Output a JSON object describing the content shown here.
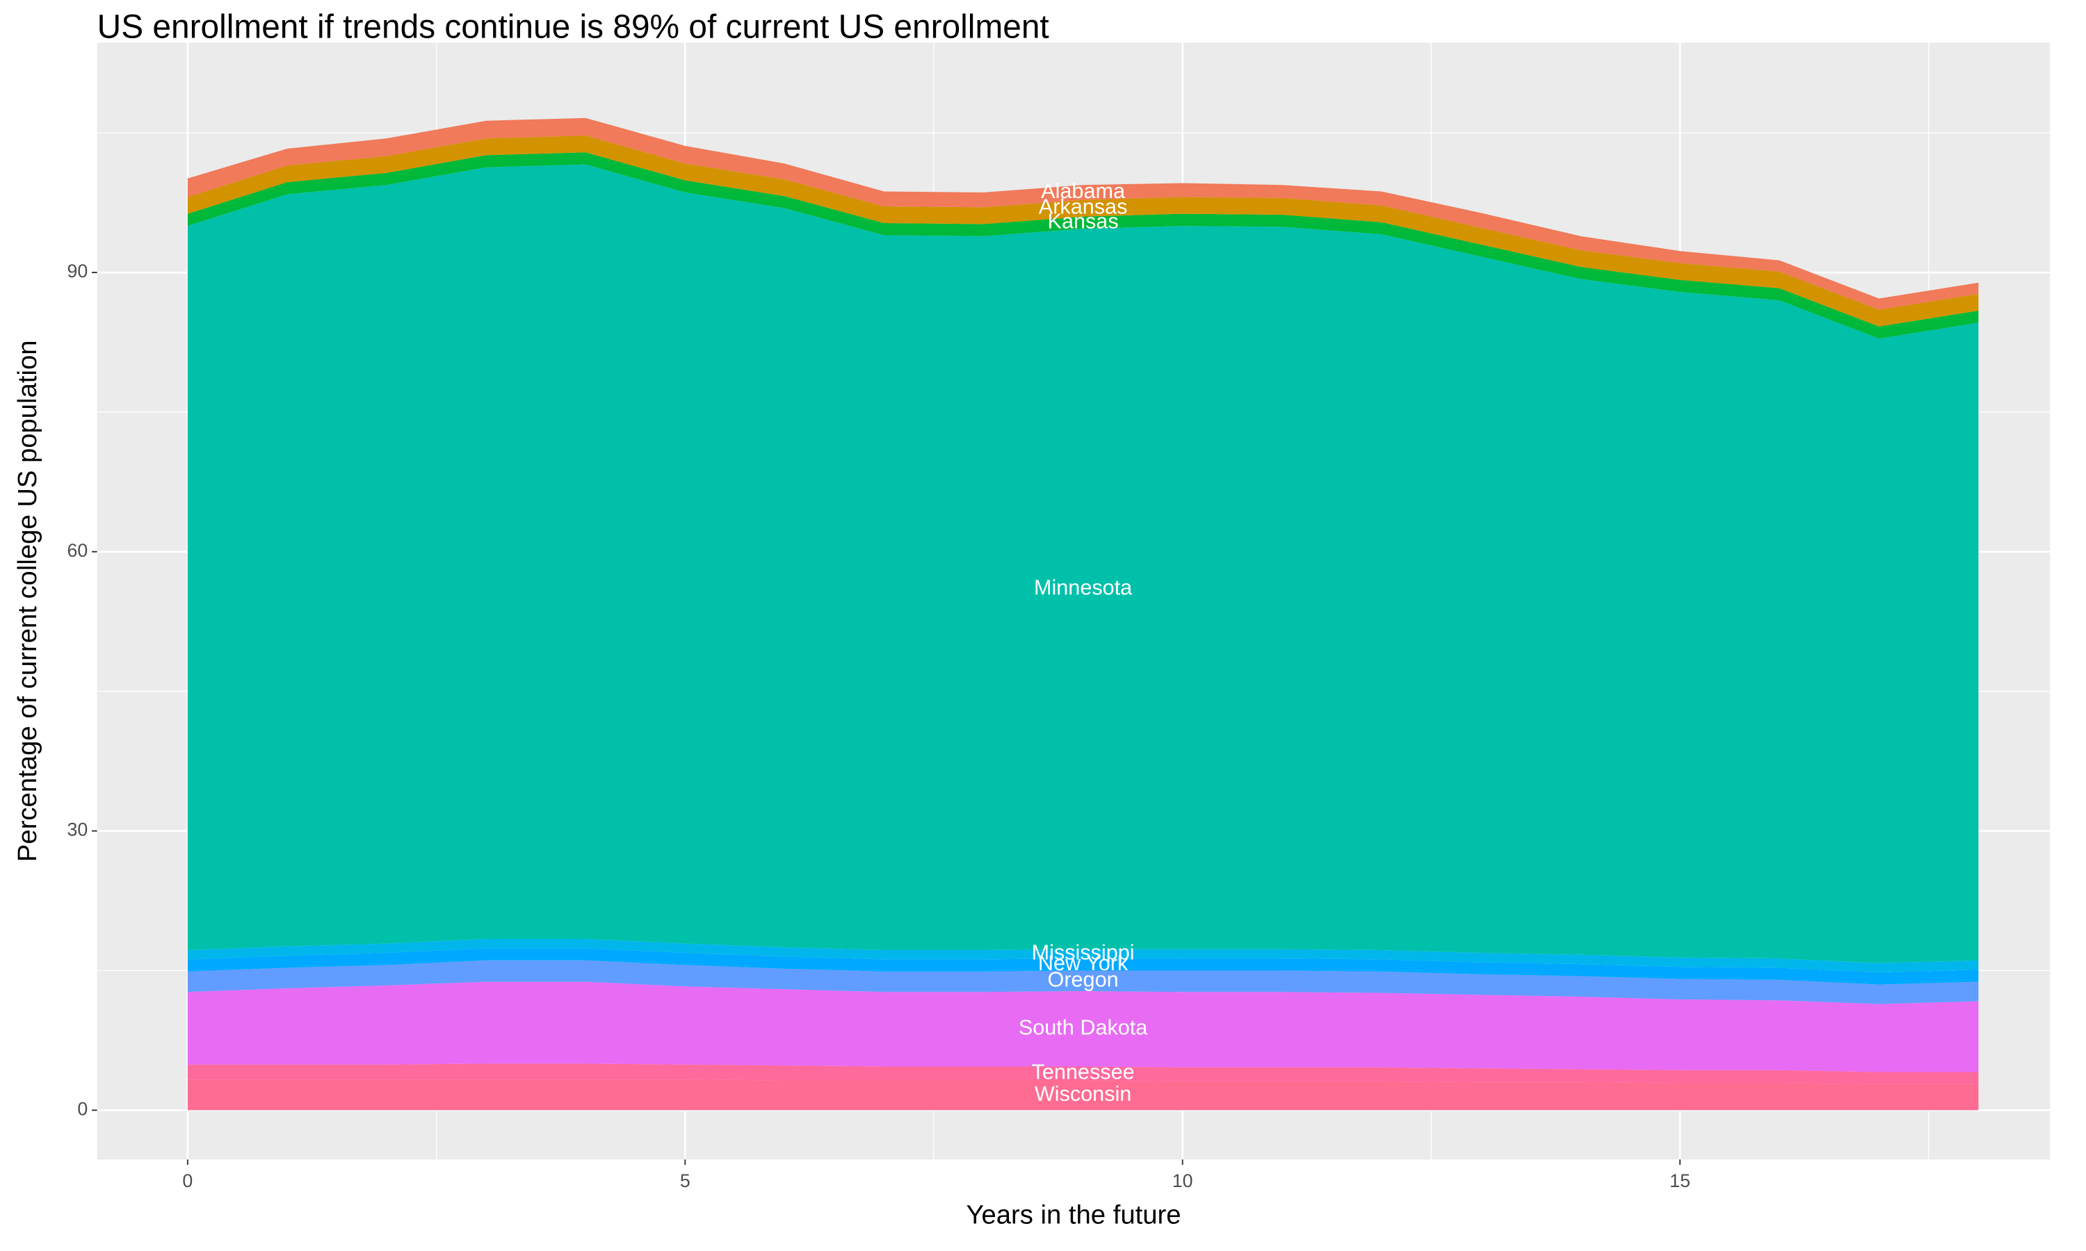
{
  "chart_data": {
    "type": "stacked_area",
    "title": "US enrollment if trends continue is 89% of current US enrollment",
    "x_label": "Years in the future",
    "y_label": "Percentage of current college US population",
    "x": [
      0,
      1,
      2,
      3,
      4,
      5,
      6,
      7,
      8,
      9,
      10,
      11,
      12,
      13,
      14,
      15,
      16,
      17,
      18
    ],
    "xlim": [
      -0.91,
      18.72
    ],
    "xticks": [
      0,
      5,
      10,
      15
    ],
    "ylim": [
      -5.3,
      114.7
    ],
    "yticks": [
      0,
      30,
      60,
      90
    ],
    "grid": true,
    "minor_grid": true,
    "label_x": 9,
    "series": [
      {
        "name": "Wisconsin",
        "color": "#FF6C91",
        "values": [
          3.3,
          3.3,
          3.3,
          3.3,
          3.3,
          3.3,
          3.2,
          3.2,
          3.2,
          3.2,
          3.1,
          3.1,
          3.1,
          3.0,
          3.0,
          2.9,
          2.9,
          2.8,
          2.8
        ]
      },
      {
        "name": "Tennessee",
        "color": "#FF6A9C",
        "values": [
          1.6,
          1.6,
          1.6,
          1.7,
          1.7,
          1.6,
          1.6,
          1.5,
          1.5,
          1.5,
          1.5,
          1.5,
          1.5,
          1.5,
          1.4,
          1.4,
          1.4,
          1.3,
          1.3
        ]
      },
      {
        "name": "South Dakota",
        "color": "#E76BF3",
        "values": [
          7.8,
          8.2,
          8.5,
          8.8,
          8.8,
          8.4,
          8.2,
          8.0,
          8.0,
          8.1,
          8.1,
          8.1,
          8.0,
          7.9,
          7.8,
          7.6,
          7.5,
          7.3,
          7.6
        ]
      },
      {
        "name": "Oregon",
        "color": "#619CFF",
        "values": [
          2.2,
          2.2,
          2.2,
          2.3,
          2.3,
          2.3,
          2.2,
          2.2,
          2.2,
          2.2,
          2.3,
          2.3,
          2.3,
          2.2,
          2.2,
          2.2,
          2.2,
          2.1,
          2.1
        ]
      },
      {
        "name": "New York",
        "color": "#00A9FF",
        "values": [
          1.3,
          1.3,
          1.3,
          1.3,
          1.3,
          1.3,
          1.3,
          1.3,
          1.3,
          1.3,
          1.3,
          1.3,
          1.3,
          1.3,
          1.3,
          1.3,
          1.3,
          1.3,
          1.3
        ]
      },
      {
        "name": "Mississippi",
        "color": "#00B6EB",
        "values": [
          1.0,
          1.0,
          1.0,
          1.0,
          1.0,
          1.0,
          1.0,
          1.0,
          1.0,
          1.0,
          1.0,
          1.0,
          1.0,
          1.0,
          1.0,
          1.0,
          1.0,
          1.0,
          1.0
        ]
      },
      {
        "name": "Minnesota",
        "color": "#00C0AA",
        "values": [
          77.8,
          80.8,
          81.5,
          82.9,
          83.2,
          80.7,
          79.4,
          76.8,
          76.7,
          77.4,
          77.7,
          77.6,
          76.9,
          74.8,
          72.6,
          71.5,
          70.7,
          67.1,
          68.5
        ]
      },
      {
        "name": "Kansas",
        "color": "#00B83A",
        "values": [
          1.3,
          1.3,
          1.3,
          1.3,
          1.3,
          1.3,
          1.3,
          1.3,
          1.3,
          1.3,
          1.3,
          1.3,
          1.3,
          1.3,
          1.3,
          1.3,
          1.3,
          1.3,
          1.3
        ]
      },
      {
        "name": "Arkansas",
        "color": "#D39200",
        "values": [
          1.8,
          1.8,
          1.8,
          1.8,
          1.8,
          1.8,
          1.8,
          1.8,
          1.8,
          1.8,
          1.8,
          1.8,
          1.8,
          1.8,
          1.8,
          1.8,
          1.8,
          1.8,
          1.8
        ]
      },
      {
        "name": "Alabama",
        "color": "#F07A5A",
        "values": [
          2.0,
          1.8,
          1.9,
          1.9,
          1.9,
          1.9,
          1.7,
          1.6,
          1.6,
          1.6,
          1.5,
          1.4,
          1.5,
          1.6,
          1.5,
          1.3,
          1.2,
          1.2,
          1.2
        ]
      }
    ]
  }
}
